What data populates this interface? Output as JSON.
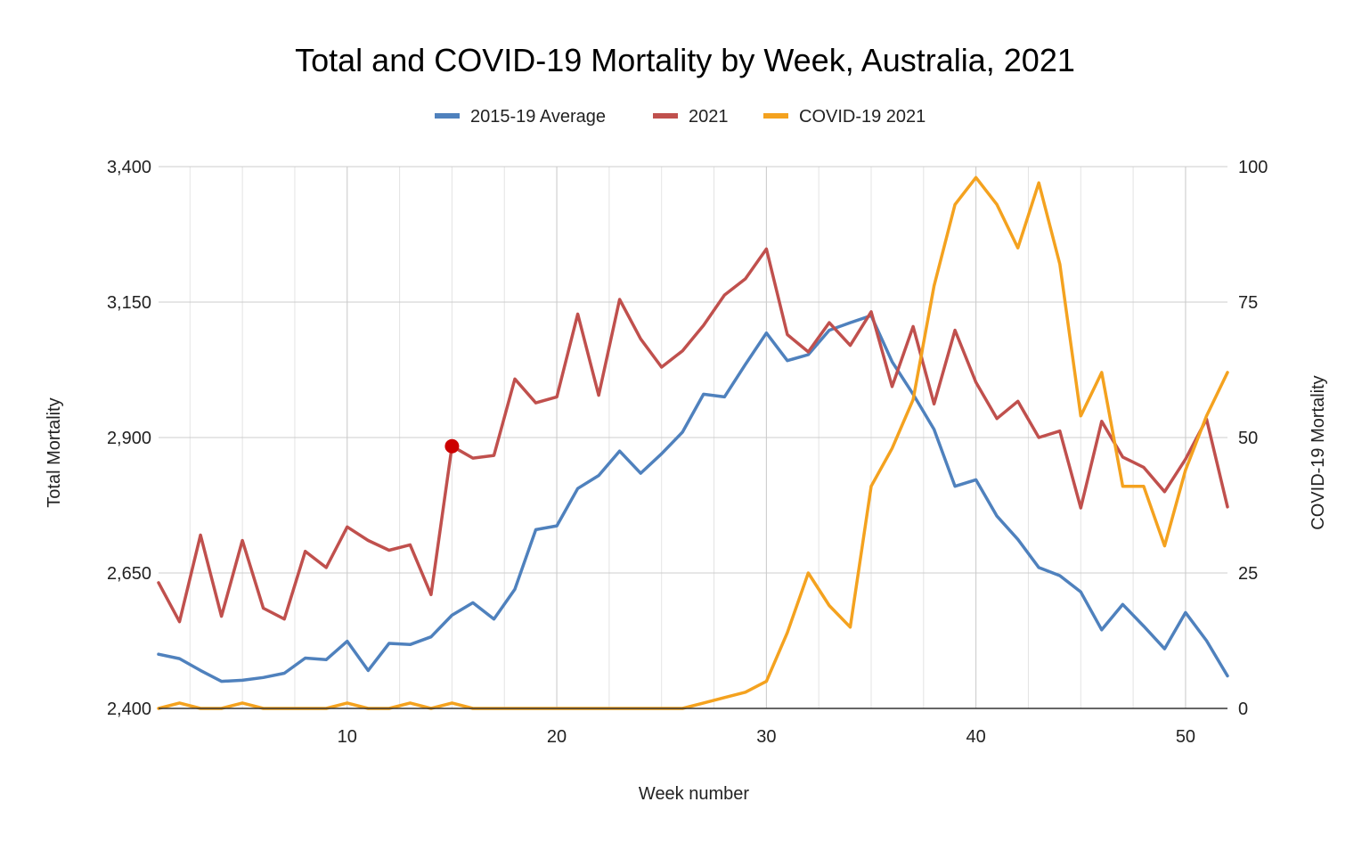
{
  "chart_data": {
    "type": "line",
    "title": "Total and COVID-19 Mortality by Week, Australia, 2021",
    "xlabel": "Week number",
    "ylabel_left": "Total Mortality",
    "ylabel_right": "COVID-19 Mortality",
    "xlim": [
      1,
      52
    ],
    "x_ticks": [
      10,
      20,
      30,
      40,
      50
    ],
    "ylim_left": [
      2400,
      3400
    ],
    "y_ticks_left": [
      2400,
      2650,
      2900,
      3150,
      3400
    ],
    "y_tick_labels_left": [
      "2,400",
      "2,650",
      "2,900",
      "3,150",
      "3,400"
    ],
    "ylim_right": [
      0,
      100
    ],
    "y_ticks_right": [
      0,
      25,
      50,
      75,
      100
    ],
    "y_tick_labels_right": [
      "0",
      "25",
      "50",
      "75",
      "100"
    ],
    "grid": true,
    "legend_position": "top",
    "x": [
      1,
      2,
      3,
      4,
      5,
      6,
      7,
      8,
      9,
      10,
      11,
      12,
      13,
      14,
      15,
      16,
      17,
      18,
      19,
      20,
      21,
      22,
      23,
      24,
      25,
      26,
      27,
      28,
      29,
      30,
      31,
      32,
      33,
      34,
      35,
      36,
      37,
      38,
      39,
      40,
      41,
      42,
      43,
      44,
      45,
      46,
      47,
      48,
      49,
      50,
      51,
      52
    ],
    "series": [
      {
        "name": "2015-19 Average",
        "axis": "left",
        "color": "#4f81bd",
        "values": [
          2500,
          2492,
          2470,
          2450,
          2452,
          2457,
          2465,
          2493,
          2490,
          2524,
          2470,
          2520,
          2518,
          2532,
          2572,
          2595,
          2565,
          2620,
          2730,
          2737,
          2806,
          2830,
          2875,
          2834,
          2870,
          2910,
          2980,
          2975,
          3035,
          3093,
          3042,
          3053,
          3098,
          3112,
          3125,
          3040,
          2980,
          2915,
          2810,
          2822,
          2755,
          2712,
          2660,
          2645,
          2615,
          2545,
          2592,
          2552,
          2510,
          2577,
          2525,
          2460
        ]
      },
      {
        "name": "2021",
        "axis": "left",
        "color": "#c0504d",
        "values": [
          2632,
          2560,
          2720,
          2570,
          2710,
          2585,
          2565,
          2690,
          2660,
          2735,
          2710,
          2692,
          2702,
          2610,
          2884,
          2862,
          2867,
          3008,
          2964,
          2975,
          3128,
          2978,
          3155,
          3082,
          3030,
          3060,
          3107,
          3163,
          3193,
          3248,
          3090,
          3058,
          3112,
          3070,
          3132,
          2994,
          3105,
          2962,
          3098,
          3002,
          2935,
          2967,
          2900,
          2912,
          2770,
          2930,
          2864,
          2845,
          2800,
          2860,
          2934,
          2772
        ]
      },
      {
        "name": "COVID-19 2021",
        "axis": "right",
        "color": "#f4a21f",
        "values": [
          0,
          1,
          0,
          0,
          1,
          0,
          0,
          0,
          0,
          1,
          0,
          0,
          1,
          0,
          1,
          0,
          0,
          0,
          0,
          0,
          0,
          0,
          0,
          0,
          0,
          0,
          1,
          2,
          3,
          5,
          14,
          25,
          19,
          15,
          41,
          48,
          57,
          78,
          93,
          98,
          93,
          85,
          97,
          82,
          54,
          62,
          41,
          41,
          30,
          44,
          54,
          62
        ]
      }
    ],
    "annotations": [
      {
        "series": "2021",
        "x": 15,
        "y": 2884,
        "marker": "dot",
        "color": "#cc0000"
      }
    ]
  }
}
